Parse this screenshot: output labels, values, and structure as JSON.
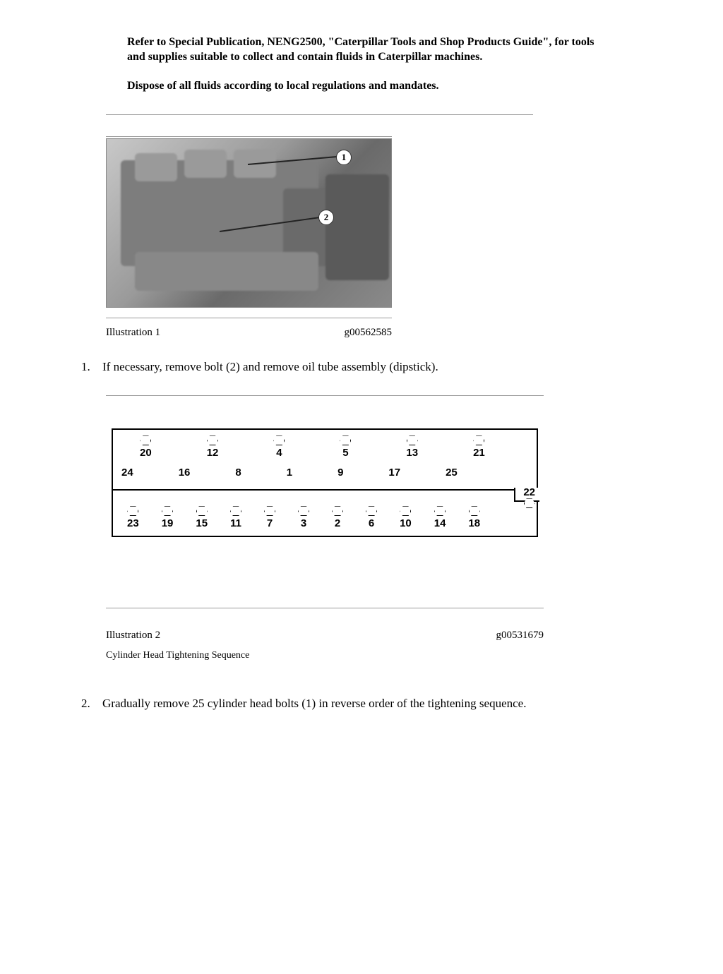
{
  "intro": {
    "p1": "Refer to Special Publication, NENG2500, \"Caterpillar Tools and Shop Products Guide\", for tools and supplies suitable to collect and contain fluids in Caterpillar machines.",
    "p2": "Dispose of all fluids according to local regulations and mandates."
  },
  "illustration1": {
    "label": "Illustration 1",
    "code": "g00562585",
    "callouts": {
      "c1": "1",
      "c2": "2"
    }
  },
  "step1": {
    "num": "1.",
    "text": "If necessary, remove bolt (2) and remove oil tube assembly (dipstick)."
  },
  "illustration2": {
    "label": "Illustration 2",
    "code": "g00531679",
    "subcaption": "Cylinder Head Tightening Sequence",
    "top_row": [
      "20",
      "12",
      "4",
      "5",
      "13",
      "21"
    ],
    "mid_row": [
      "24",
      "16",
      "8",
      "1",
      "9",
      "17",
      "25"
    ],
    "mid_extra": "22",
    "bot_row": [
      "23",
      "19",
      "15",
      "11",
      "7",
      "3",
      "2",
      "6",
      "10",
      "14",
      "18"
    ]
  },
  "step2": {
    "num": "2.",
    "text": "Gradually remove 25 cylinder head bolts (1) in reverse order of the tightening sequence."
  }
}
